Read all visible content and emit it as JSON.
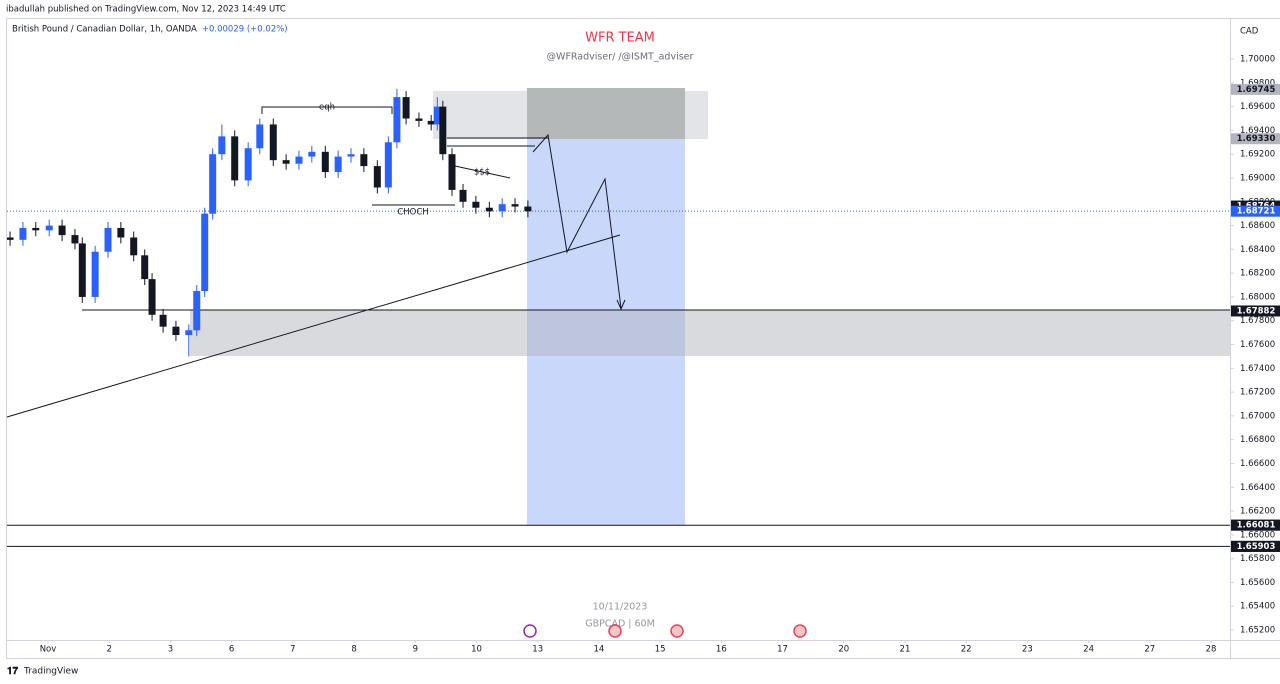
{
  "chart_data": {
    "type": "candlestick",
    "header": "ibadullah published on TradingView.com, Nov 12, 2023 14:49 UTC",
    "symbol": "British Pound / Canadian Dollar, 1h, OANDA",
    "change": "+0.00029 (+0.02%)",
    "title": "WFR TEAM",
    "subtitle": "@WFRadviser/ /@ISMT_adviser",
    "currency": "CAD",
    "watermark_date": "10/11/2023",
    "watermark_symbol": "GBPCAD | 60M",
    "footer": "TradingView",
    "annotations": {
      "eqh": "eqh",
      "choch": "CHOCH",
      "liquidity": "$$$"
    },
    "up_color": "#2962ff",
    "down_color": "#131722",
    "xlim": [
      -0.67,
      19.31
    ],
    "xticks": [
      {
        "value": 0,
        "label": "Nov"
      },
      {
        "value": 1,
        "label": "2"
      },
      {
        "value": 2,
        "label": "3"
      },
      {
        "value": 3,
        "label": "6"
      },
      {
        "value": 4,
        "label": "7"
      },
      {
        "value": 5,
        "label": "8"
      },
      {
        "value": 6,
        "label": "9"
      },
      {
        "value": 7,
        "label": "10"
      },
      {
        "value": 8,
        "label": "13"
      },
      {
        "value": 9,
        "label": "14"
      },
      {
        "value": 10,
        "label": "15"
      },
      {
        "value": 11,
        "label": "16"
      },
      {
        "value": 12,
        "label": "17"
      },
      {
        "value": 13,
        "label": "20"
      },
      {
        "value": 14,
        "label": "21"
      },
      {
        "value": 15,
        "label": "22"
      },
      {
        "value": 16,
        "label": "23"
      },
      {
        "value": 17,
        "label": "24"
      },
      {
        "value": 18,
        "label": "27"
      },
      {
        "value": 19,
        "label": "28"
      }
    ],
    "ylim": [
      1.65116,
      1.70345
    ],
    "yticks": [
      {
        "value": 1.652,
        "label": "1.65200"
      },
      {
        "value": 1.654,
        "label": "1.65400"
      },
      {
        "value": 1.656,
        "label": "1.65600"
      },
      {
        "value": 1.658,
        "label": "1.65800"
      },
      {
        "value": 1.66,
        "label": "1.66000"
      },
      {
        "value": 1.662,
        "label": "1.66200"
      },
      {
        "value": 1.664,
        "label": "1.66400"
      },
      {
        "value": 1.666,
        "label": "1.66600"
      },
      {
        "value": 1.668,
        "label": "1.66800"
      },
      {
        "value": 1.67,
        "label": "1.67000"
      },
      {
        "value": 1.672,
        "label": "1.67200"
      },
      {
        "value": 1.674,
        "label": "1.67400"
      },
      {
        "value": 1.676,
        "label": "1.67600"
      },
      {
        "value": 1.678,
        "label": "1.67800"
      },
      {
        "value": 1.68,
        "label": "1.68000"
      },
      {
        "value": 1.682,
        "label": "1.68200"
      },
      {
        "value": 1.684,
        "label": "1.68400"
      },
      {
        "value": 1.686,
        "label": "1.68600"
      },
      {
        "value": 1.688,
        "label": "1.68800"
      },
      {
        "value": 1.69,
        "label": "1.69000"
      },
      {
        "value": 1.692,
        "label": "1.69200"
      },
      {
        "value": 1.694,
        "label": "1.69400"
      },
      {
        "value": 1.696,
        "label": "1.69600"
      },
      {
        "value": 1.698,
        "label": "1.69800"
      },
      {
        "value": 1.7,
        "label": "1.70000"
      }
    ],
    "price_labels": [
      {
        "value": 1.69745,
        "label": "1.69745",
        "color": "#b2b5be"
      },
      {
        "value": 1.6933,
        "label": "1.69330",
        "color": "#b2b5be"
      },
      {
        "value": 1.68764,
        "label": "1.68764",
        "color": "#131722"
      },
      {
        "value": 1.68721,
        "label": "1.68721",
        "color": "#2962ff",
        "line": "dotted"
      },
      {
        "value": 1.67882,
        "label": "1.67882",
        "color": "#131722"
      },
      {
        "value": 1.66083,
        "label": "1.66083",
        "color": "#2962ff"
      },
      {
        "value": 1.66081,
        "label": "1.66081",
        "color": "#131722",
        "line": "solid"
      },
      {
        "value": 1.65903,
        "label": "1.65903",
        "color": "#131722",
        "line": "solid"
      },
      {
        "value": 1.65903,
        "label": "1.65903",
        "color": "#131722"
      }
    ],
    "x": [
      -0.62,
      -0.41,
      -0.2,
      0.02,
      0.23,
      0.44,
      0.56,
      0.77,
      0.98,
      1.19,
      1.4,
      1.58,
      1.7,
      1.88,
      2.09,
      2.3,
      2.43,
      2.56,
      2.69,
      2.84,
      3.05,
      3.27,
      3.46,
      3.68,
      3.89,
      4.1,
      4.31,
      4.53,
      4.74,
      4.95,
      5.16,
      5.38,
      5.56,
      5.7,
      5.85,
      6.06,
      6.26,
      6.36,
      6.45,
      6.6,
      6.78,
      6.99,
      7.21,
      7.42,
      7.63,
      7.84
    ],
    "open": [
      1.685,
      1.6848,
      1.6858,
      1.6856,
      1.686,
      1.6852,
      1.6845,
      1.68,
      1.6838,
      1.6858,
      1.685,
      1.6835,
      1.6815,
      1.6785,
      1.6775,
      1.6768,
      1.6772,
      1.6805,
      1.687,
      1.692,
      1.6935,
      1.6898,
      1.6925,
      1.6945,
      1.6915,
      1.6912,
      1.6918,
      1.6922,
      1.6905,
      1.6918,
      1.692,
      1.691,
      1.6892,
      1.693,
      1.6968,
      1.695,
      1.6948,
      1.6945,
      1.696,
      1.692,
      1.689,
      1.688,
      1.6875,
      1.6872,
      1.6878,
      1.6876
    ],
    "high": [
      1.6855,
      1.6863,
      1.6863,
      1.6865,
      1.6865,
      1.6857,
      1.685,
      1.6843,
      1.6863,
      1.6863,
      1.6855,
      1.684,
      1.682,
      1.679,
      1.678,
      1.6777,
      1.681,
      1.6875,
      1.6925,
      1.6945,
      1.694,
      1.693,
      1.695,
      1.695,
      1.692,
      1.6923,
      1.6927,
      1.6927,
      1.6923,
      1.6925,
      1.6925,
      1.6915,
      1.6935,
      1.6975,
      1.6973,
      1.6955,
      1.6953,
      1.6968,
      1.6965,
      1.6925,
      1.6895,
      1.6885,
      1.688,
      1.6883,
      1.6883,
      1.6881
    ],
    "low": [
      1.6843,
      1.6843,
      1.6851,
      1.6851,
      1.6847,
      1.684,
      1.6795,
      1.6795,
      1.6833,
      1.6845,
      1.683,
      1.681,
      1.678,
      1.677,
      1.6763,
      1.675,
      1.6767,
      1.68,
      1.6865,
      1.6915,
      1.6893,
      1.6893,
      1.692,
      1.691,
      1.6907,
      1.6907,
      1.6913,
      1.69,
      1.69,
      1.6913,
      1.6905,
      1.6887,
      1.6887,
      1.6925,
      1.6945,
      1.6943,
      1.694,
      1.694,
      1.6915,
      1.6885,
      1.6875,
      1.687,
      1.6867,
      1.6867,
      1.6871,
      1.6867
    ],
    "close": [
      1.6848,
      1.6858,
      1.6856,
      1.686,
      1.6852,
      1.6845,
      1.68,
      1.6838,
      1.6858,
      1.685,
      1.6835,
      1.6815,
      1.6785,
      1.6775,
      1.6768,
      1.6772,
      1.6805,
      1.687,
      1.692,
      1.6935,
      1.6898,
      1.6925,
      1.6945,
      1.6915,
      1.6912,
      1.6918,
      1.6922,
      1.6905,
      1.6918,
      1.692,
      1.691,
      1.6892,
      1.693,
      1.6968,
      1.695,
      1.6948,
      1.6945,
      1.696,
      1.692,
      1.689,
      1.688,
      1.6875,
      1.6872,
      1.6878,
      1.6876,
      1.6872
    ]
  }
}
